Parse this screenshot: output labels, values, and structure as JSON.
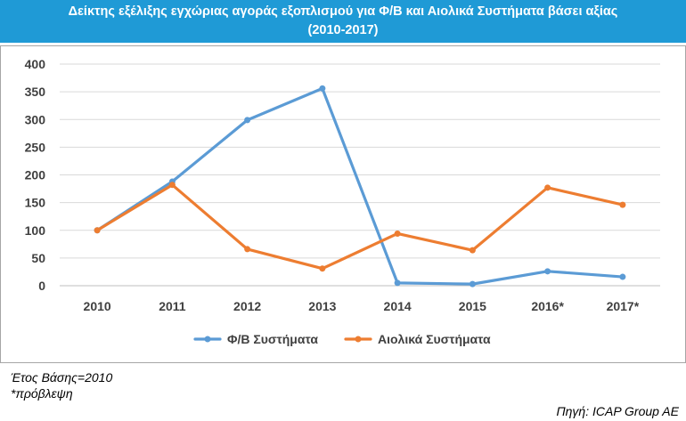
{
  "header": {
    "title_line1": "Δείκτης εξέλιξης εγχώριας αγοράς εξοπλισμού για Φ/Β και Αιολικά Συστήματα βάσει αξίας",
    "title_line2": "(2010-2017)"
  },
  "footer": {
    "base_year": "Έτος Βάσης=2010",
    "forecast_note": "*πρόβλεψη",
    "source": "Πηγή: ICAP Group AE"
  },
  "chart_data": {
    "type": "line",
    "categories": [
      "2010",
      "2011",
      "2012",
      "2013",
      "2014",
      "2015",
      "2016*",
      "2017*"
    ],
    "series": [
      {
        "name": "Φ/Β Συστήματα",
        "color": "#5b9bd5",
        "values": [
          100,
          188,
          299,
          356,
          5,
          3,
          26,
          16
        ]
      },
      {
        "name": "Αιολικά Συστήματα",
        "color": "#ed7d31",
        "values": [
          100,
          182,
          66,
          31,
          94,
          64,
          177,
          146
        ]
      }
    ],
    "ylim": [
      0,
      400
    ],
    "yticks": [
      0,
      50,
      100,
      150,
      200,
      250,
      300,
      350,
      400
    ],
    "grid": true,
    "legend_position": "bottom"
  }
}
